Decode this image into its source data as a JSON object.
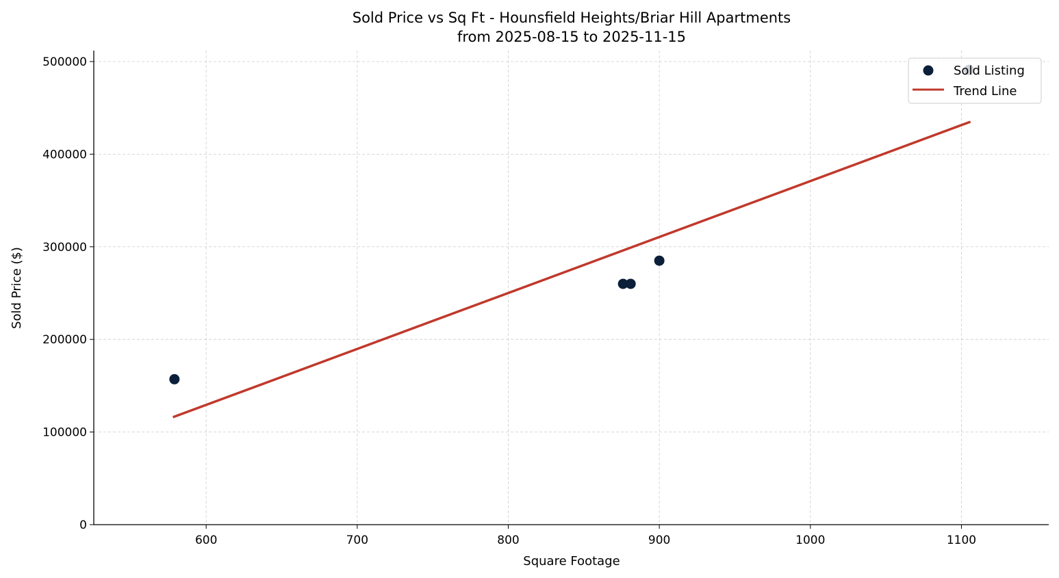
{
  "chart_data": {
    "type": "scatter",
    "title": "Sold Price vs Sq Ft - Hounsfield Heights/Briar Hill Apartments",
    "subtitle": "from 2025-08-15 to 2025-11-15",
    "xlabel": "Square Footage",
    "ylabel": "Sold Price ($)",
    "xlim": [
      525.6,
      1157.8
    ],
    "ylim": [
      0,
      511800
    ],
    "xticks": [
      600,
      700,
      800,
      900,
      1000,
      1100
    ],
    "yticks": [
      0,
      100000,
      200000,
      300000,
      400000,
      500000
    ],
    "grid": true,
    "legend_placement": "top-right",
    "series": [
      {
        "name": "Sold Listing",
        "kind": "scatter",
        "color": "#0b1f3a",
        "points": [
          [
            579,
            157000
          ],
          [
            876,
            260000
          ],
          [
            881,
            260000
          ],
          [
            900,
            285000
          ],
          [
            1105,
            491000
          ]
        ]
      },
      {
        "name": "Trend Line",
        "kind": "line",
        "color": "#c0392b",
        "points": [
          [
            578,
            116000
          ],
          [
            1106,
            435000
          ]
        ]
      }
    ]
  }
}
